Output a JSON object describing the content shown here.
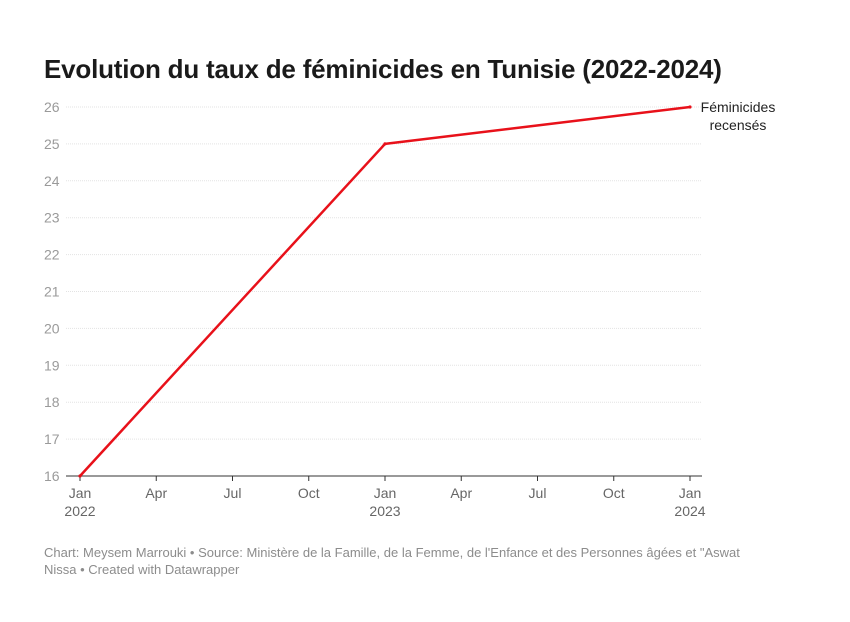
{
  "chart_data": {
    "type": "line",
    "title": "Evolution du taux de féminicides en Tunisie (2022-2024)",
    "xlabel": "",
    "ylabel": "",
    "ylim": [
      16,
      26
    ],
    "y_ticks": [
      "26",
      "25",
      "24",
      "23",
      "22",
      "21",
      "20",
      "19",
      "18",
      "17",
      "16"
    ],
    "x_ticks": [
      {
        "month": "Jan",
        "year": "2022"
      },
      {
        "month": "Apr",
        "year": ""
      },
      {
        "month": "Jul",
        "year": ""
      },
      {
        "month": "Oct",
        "year": ""
      },
      {
        "month": "Jan",
        "year": "2023"
      },
      {
        "month": "Apr",
        "year": ""
      },
      {
        "month": "Jul",
        "year": ""
      },
      {
        "month": "Oct",
        "year": ""
      },
      {
        "month": "Jan",
        "year": "2024"
      }
    ],
    "grid": true,
    "series": [
      {
        "name": "Féminicides recensés",
        "name_lines": [
          "Féminicides",
          "recensés"
        ],
        "color": "#e8111a",
        "x": [
          "2022-01-01",
          "2023-01-01",
          "2024-01-01"
        ],
        "values": [
          16,
          25,
          26
        ]
      }
    ]
  },
  "footer": {
    "line1": "Chart: Meysem Marrouki • Source: Ministère de la Famille, de la Femme, de l'Enfance et des Personnes âgées et \"Aswat",
    "line2": "Nissa • Created with Datawrapper"
  }
}
